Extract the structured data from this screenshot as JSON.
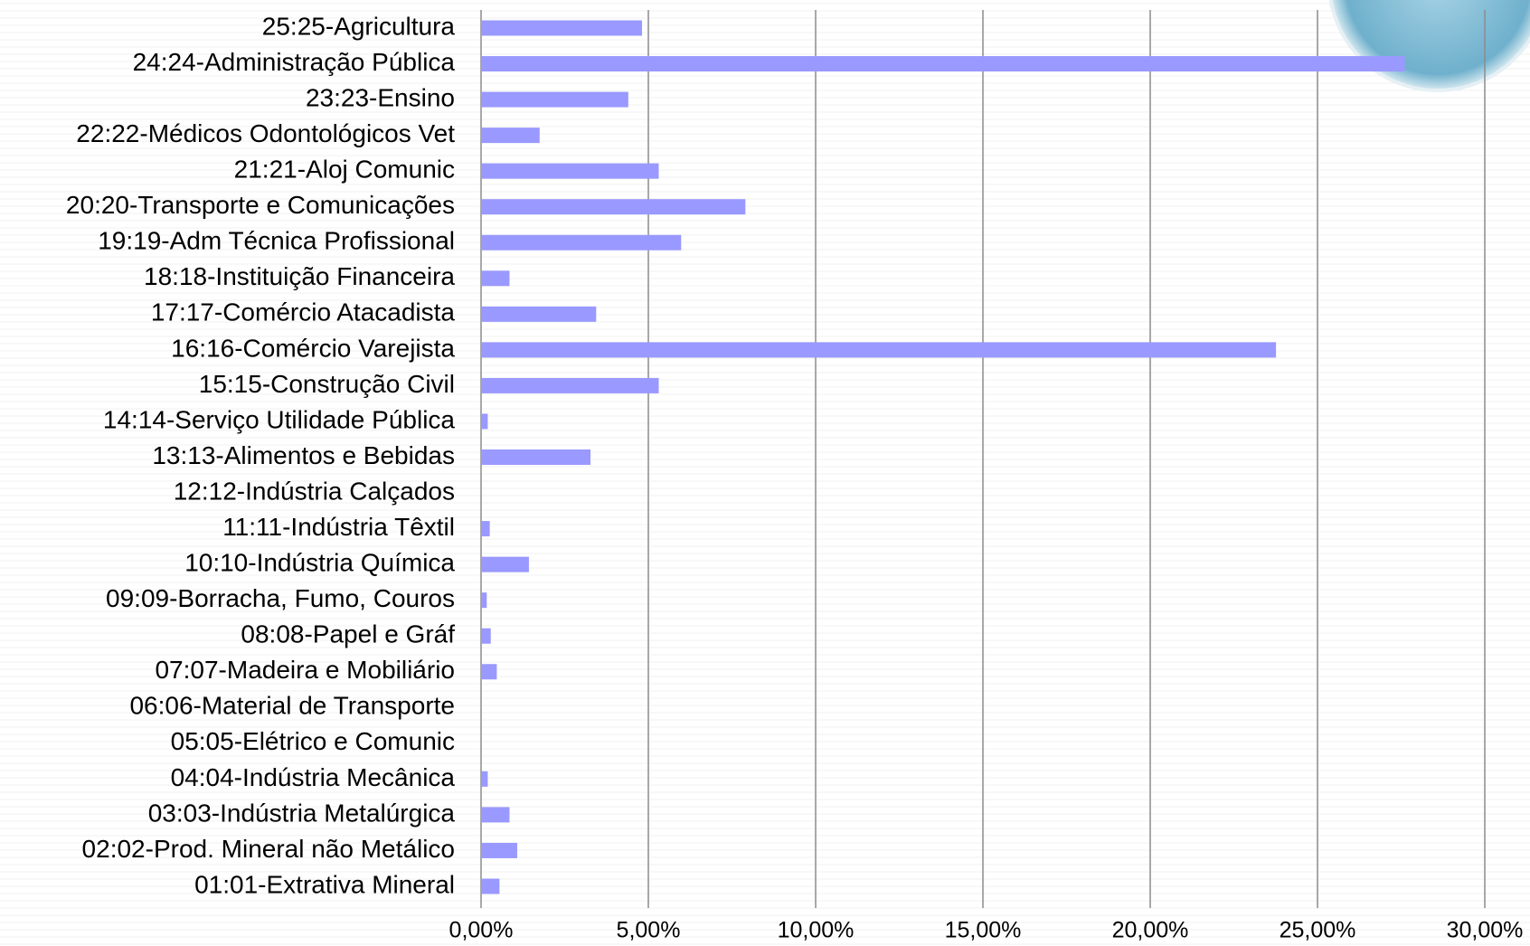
{
  "chart_data": {
    "type": "barh",
    "categories": [
      "01:01-Extrativa Mineral",
      "02:02-Prod. Mineral não Metálico",
      "03:03-Indústria Metalúrgica",
      "04:04-Indústria Mecânica",
      "05:05-Elétrico e Comunic",
      "06:06-Material de Transporte",
      "07:07-Madeira e Mobiliário",
      "08:08-Papel e Gráf",
      "09:09-Borracha, Fumo, Couros",
      "10:10-Indústria Química",
      "11:11-Indústria Têxtil",
      "12:12-Indústria Calçados",
      "13:13-Alimentos e Bebidas",
      "14:14-Serviço Utilidade Pública",
      "15:15-Construção Civil",
      "16:16-Comércio Varejista",
      "17:17-Comércio Atacadista",
      "18:18-Instituição Financeira",
      "19:19-Adm Técnica Profissional",
      "20:20-Transporte e Comunicações",
      "21:21-Aloj Comunic",
      "22:22-Médicos Odontológicos Vet",
      "23:23-Ensino",
      "24:24-Administração Pública",
      "25:25-Agricultura"
    ],
    "values": [
      0.55,
      1.08,
      0.85,
      0.2,
      0,
      0,
      0.47,
      0.29,
      0.17,
      1.43,
      0.26,
      0,
      3.27,
      0.2,
      5.31,
      23.76,
      3.44,
      0.85,
      5.98,
      7.9,
      5.31,
      1.75,
      4.4,
      27.61,
      4.81
    ],
    "color": "#9999ff",
    "xlim": [
      0,
      30
    ],
    "xticks": [
      {
        "value": 0,
        "label": "0,00%"
      },
      {
        "value": 5,
        "label": "5,00%"
      },
      {
        "value": 10,
        "label": "10,00%"
      },
      {
        "value": 15,
        "label": "15,00%"
      },
      {
        "value": 20,
        "label": "20,00%"
      },
      {
        "value": 25,
        "label": "25,00%"
      },
      {
        "value": 30,
        "label": "30,00%"
      }
    ],
    "grid": true
  }
}
